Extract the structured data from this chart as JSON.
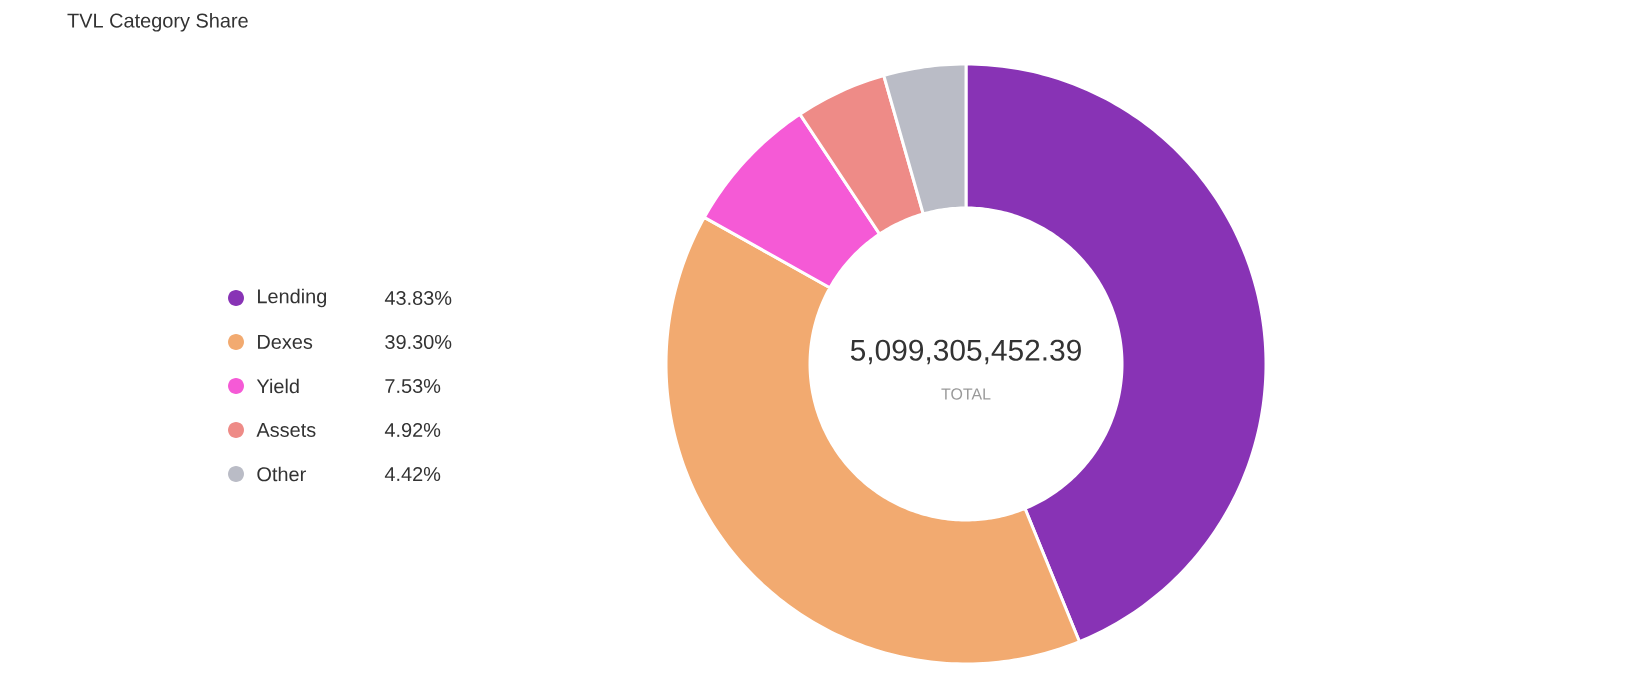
{
  "chart_data": {
    "type": "donut",
    "title": "TVL Category Share",
    "categories": [
      "Lending",
      "Dexes",
      "Yield",
      "Assets",
      "Other"
    ],
    "values": [
      43.83,
      39.3,
      7.53,
      4.92,
      4.42
    ],
    "colors": [
      "#8833b5",
      "#f2aa70",
      "#f55ad6",
      "#ee8b87",
      "#babcc6"
    ],
    "value_labels": [
      "43.83%",
      "39.30%",
      "7.53%",
      "4.92%",
      "4.42%"
    ],
    "legend": "left",
    "annotations": [
      "5,099,305,452.39",
      "TOTAL"
    ]
  }
}
